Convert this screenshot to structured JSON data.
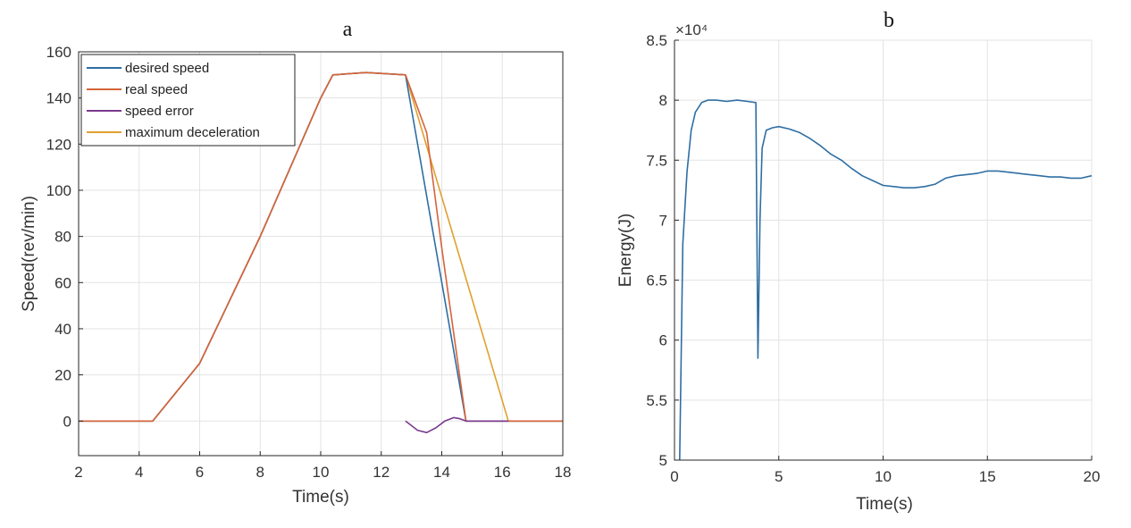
{
  "chart_data": [
    {
      "type": "line",
      "title": "a",
      "xlabel": "Time(s)",
      "ylabel": "Speed(rev/min)",
      "xlim": [
        2,
        18
      ],
      "ylim": [
        -15,
        160
      ],
      "xticks": [
        2,
        4,
        6,
        8,
        10,
        12,
        14,
        16,
        18
      ],
      "yticks": [
        0,
        20,
        40,
        60,
        80,
        100,
        120,
        140,
        160
      ],
      "grid": true,
      "legend_position": "top-left",
      "series": [
        {
          "name": "desired speed",
          "color": "#2e6ea3",
          "x": [
            2,
            4.45,
            6,
            8,
            10,
            10.4,
            11.5,
            12.8,
            14.8,
            16.2,
            18
          ],
          "y": [
            0,
            0,
            25,
            80,
            140,
            150,
            151,
            150,
            0,
            0,
            0
          ]
        },
        {
          "name": "real speed",
          "color": "#d5643a",
          "x": [
            2,
            4.45,
            6,
            8,
            10,
            10.4,
            11.5,
            12.8,
            13.5,
            14.0,
            14.8,
            16.2,
            18
          ],
          "y": [
            0,
            0,
            25,
            80,
            140,
            150,
            151,
            150,
            125,
            75,
            0,
            0,
            0
          ]
        },
        {
          "name": "speed error",
          "color": "#7b3a8f",
          "x": [
            12.8,
            13.0,
            13.2,
            13.5,
            13.8,
            14.1,
            14.4,
            14.6,
            14.8,
            15.2,
            16.2
          ],
          "y": [
            0,
            -2,
            -4,
            -5,
            -3,
            0,
            1.5,
            1,
            0,
            0,
            0
          ]
        },
        {
          "name": "maximum deceleration",
          "color": "#e0a030",
          "x": [
            2,
            4.45,
            6,
            8,
            10,
            10.4,
            11.5,
            12.8,
            16.2,
            18
          ],
          "y": [
            0,
            0,
            25,
            80,
            140,
            150,
            151,
            150,
            0,
            0
          ]
        }
      ]
    },
    {
      "type": "line",
      "title": "b",
      "xlabel": "Time(s)",
      "ylabel": "Energy(J)",
      "axis_multiplier": "×10⁴",
      "xlim": [
        0,
        20
      ],
      "ylim": [
        50000,
        85000
      ],
      "xticks": [
        0,
        5,
        10,
        15,
        20
      ],
      "yticks": [
        50000,
        55000,
        60000,
        65000,
        70000,
        75000,
        80000,
        85000
      ],
      "ytick_labels": [
        "5",
        "5.5",
        "6",
        "6.5",
        "7",
        "7.5",
        "8",
        "8.5"
      ],
      "grid": true,
      "series": [
        {
          "color": "#2e6ea3",
          "x": [
            0.25,
            0.4,
            0.6,
            0.8,
            1.0,
            1.3,
            1.6,
            2.0,
            2.5,
            3.0,
            3.5,
            3.9,
            4.0,
            4.1,
            4.2,
            4.4,
            4.7,
            5.0,
            5.5,
            6.0,
            6.5,
            7.0,
            7.5,
            8.0,
            8.5,
            9.0,
            9.5,
            10.0,
            10.5,
            11.0,
            11.5,
            12.0,
            12.5,
            13.0,
            13.5,
            14.0,
            14.5,
            15.0,
            15.5,
            16.0,
            16.5,
            17.0,
            17.5,
            18.0,
            18.5,
            19.0,
            19.5,
            20.0
          ],
          "y": [
            50000,
            68000,
            74000,
            77500,
            79000,
            79800,
            80000,
            80000,
            79900,
            80000,
            79900,
            79800,
            58500,
            70000,
            76000,
            77500,
            77700,
            77800,
            77600,
            77300,
            76800,
            76200,
            75500,
            75000,
            74300,
            73700,
            73300,
            72900,
            72800,
            72700,
            72700,
            72800,
            73000,
            73500,
            73700,
            73800,
            73900,
            74100,
            74100,
            74000,
            73900,
            73800,
            73700,
            73600,
            73600,
            73500,
            73500,
            73700
          ]
        }
      ]
    }
  ]
}
